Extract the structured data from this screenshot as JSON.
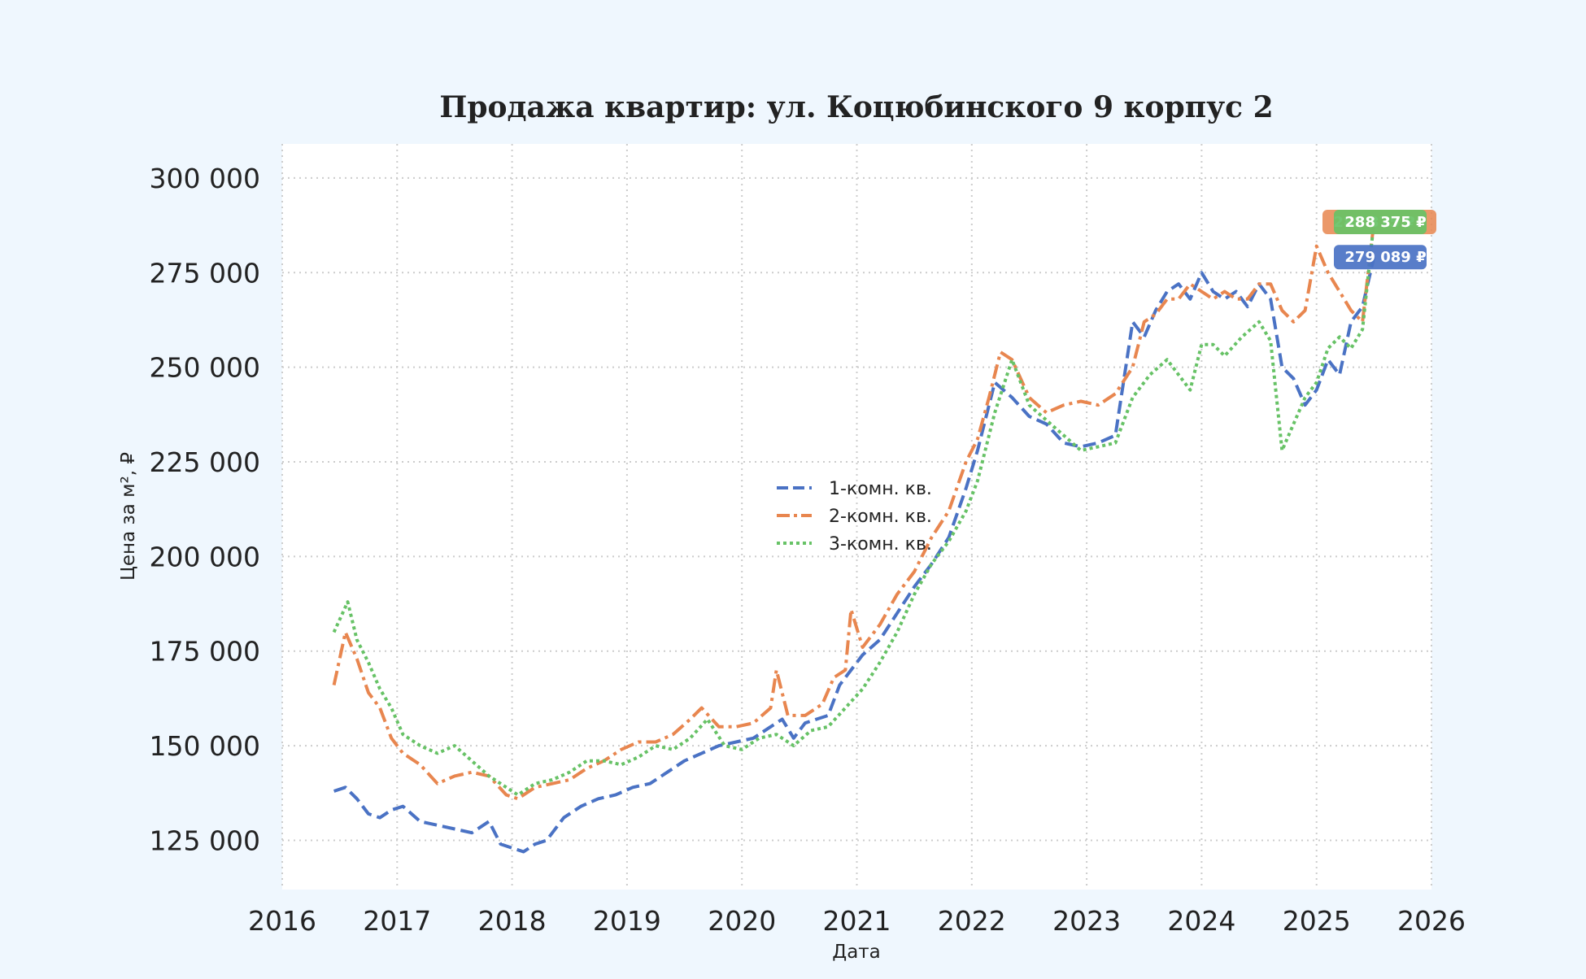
{
  "chart_data": {
    "type": "line",
    "title": "Продажа квартир: ул. Коцюбинского 9 корпус 2",
    "xlabel": "Дата",
    "ylabel": "Цена за м², ₽",
    "xlim": [
      2016,
      2026
    ],
    "ylim": [
      112000,
      309000
    ],
    "x_ticks": [
      "2016",
      "2017",
      "2018",
      "2019",
      "2020",
      "2021",
      "2022",
      "2023",
      "2024",
      "2025",
      "2026"
    ],
    "y_ticks": [
      "125 000",
      "150 000",
      "175 000",
      "200 000",
      "225 000",
      "250 000",
      "275 000",
      "300 000"
    ],
    "grid": true,
    "legend_position": "center",
    "series": [
      {
        "name": "1-комн. кв.",
        "color": "#4a72c4",
        "dash": "dashed",
        "last_value_label": "279 089 ₽",
        "x": [
          2016.45,
          2016.55,
          2016.65,
          2016.75,
          2016.85,
          2016.95,
          2017.05,
          2017.2,
          2017.35,
          2017.5,
          2017.65,
          2017.8,
          2017.9,
          2018.0,
          2018.1,
          2018.2,
          2018.3,
          2018.45,
          2018.6,
          2018.75,
          2018.9,
          2019.05,
          2019.2,
          2019.35,
          2019.5,
          2019.65,
          2019.8,
          2019.95,
          2020.1,
          2020.25,
          2020.35,
          2020.45,
          2020.55,
          2020.65,
          2020.75,
          2020.85,
          2020.95,
          2021.05,
          2021.2,
          2021.35,
          2021.5,
          2021.65,
          2021.8,
          2021.95,
          2022.05,
          2022.2,
          2022.35,
          2022.5,
          2022.65,
          2022.8,
          2022.95,
          2023.1,
          2023.25,
          2023.4,
          2023.5,
          2023.6,
          2023.7,
          2023.8,
          2023.9,
          2024.0,
          2024.1,
          2024.2,
          2024.3,
          2024.4,
          2024.5,
          2024.6,
          2024.7,
          2024.8,
          2024.9,
          2025.0,
          2025.1,
          2025.2,
          2025.3,
          2025.4,
          2025.5
        ],
        "values": [
          138000,
          139000,
          136000,
          132000,
          131000,
          133000,
          134000,
          130000,
          129000,
          128000,
          127000,
          130000,
          124000,
          123000,
          122000,
          124000,
          125000,
          131000,
          134000,
          136000,
          137000,
          139000,
          140000,
          143000,
          146000,
          148000,
          150000,
          151000,
          152000,
          155000,
          157000,
          152000,
          156000,
          157000,
          158000,
          166000,
          170000,
          174000,
          178000,
          185000,
          192000,
          198000,
          205000,
          218000,
          228000,
          246000,
          242000,
          237000,
          235000,
          230000,
          229000,
          230000,
          232000,
          262000,
          258000,
          265000,
          270000,
          272000,
          268000,
          275000,
          270000,
          268000,
          270000,
          266000,
          272000,
          268000,
          250000,
          247000,
          240000,
          244000,
          252000,
          248000,
          262000,
          266000,
          279089
        ]
      },
      {
        "name": "2-комн. кв.",
        "color": "#e8864f",
        "dash": "dashdot",
        "last_value_label": "288 375 ₽",
        "x": [
          2016.45,
          2016.55,
          2016.65,
          2016.75,
          2016.85,
          2016.95,
          2017.05,
          2017.2,
          2017.35,
          2017.5,
          2017.65,
          2017.8,
          2017.95,
          2018.05,
          2018.2,
          2018.35,
          2018.5,
          2018.65,
          2018.8,
          2018.95,
          2019.1,
          2019.25,
          2019.4,
          2019.55,
          2019.65,
          2019.8,
          2019.95,
          2020.1,
          2020.25,
          2020.3,
          2020.4,
          2020.55,
          2020.7,
          2020.8,
          2020.9,
          2020.95,
          2021.05,
          2021.2,
          2021.35,
          2021.5,
          2021.65,
          2021.8,
          2021.95,
          2022.05,
          2022.15,
          2022.25,
          2022.35,
          2022.5,
          2022.65,
          2022.8,
          2022.95,
          2023.1,
          2023.25,
          2023.4,
          2023.5,
          2023.6,
          2023.7,
          2023.8,
          2023.9,
          2024.0,
          2024.1,
          2024.2,
          2024.3,
          2024.4,
          2024.5,
          2024.6,
          2024.7,
          2024.8,
          2024.9,
          2025.0,
          2025.1,
          2025.2,
          2025.3,
          2025.4,
          2025.5
        ],
        "values": [
          166000,
          180000,
          173000,
          164000,
          160000,
          152000,
          148000,
          145000,
          140000,
          142000,
          143000,
          142000,
          137000,
          136000,
          139000,
          140000,
          141000,
          144000,
          146000,
          149000,
          151000,
          151000,
          153000,
          157000,
          160000,
          155000,
          155000,
          156000,
          160000,
          170000,
          158000,
          158000,
          161000,
          168000,
          170000,
          186000,
          176000,
          182000,
          190000,
          196000,
          205000,
          212000,
          225000,
          231000,
          242000,
          254000,
          252000,
          242000,
          238000,
          240000,
          241000,
          240000,
          243000,
          250000,
          262000,
          264000,
          268000,
          268000,
          272000,
          270000,
          268000,
          270000,
          268000,
          268000,
          272000,
          272000,
          265000,
          262000,
          265000,
          282000,
          275000,
          270000,
          265000,
          262000,
          288375
        ]
      },
      {
        "name": "3-комн. кв.",
        "color": "#67c266",
        "dash": "dotted",
        "last_value_label": "288 375 ₽",
        "x": [
          2016.45,
          2016.57,
          2016.65,
          2016.75,
          2016.85,
          2016.95,
          2017.05,
          2017.2,
          2017.35,
          2017.5,
          2017.65,
          2017.8,
          2017.95,
          2018.05,
          2018.2,
          2018.35,
          2018.5,
          2018.65,
          2018.8,
          2018.95,
          2019.1,
          2019.25,
          2019.4,
          2019.55,
          2019.7,
          2019.85,
          2020.0,
          2020.15,
          2020.3,
          2020.45,
          2020.6,
          2020.75,
          2020.9,
          2021.05,
          2021.2,
          2021.35,
          2021.5,
          2021.65,
          2021.8,
          2021.95,
          2022.05,
          2022.2,
          2022.35,
          2022.5,
          2022.65,
          2022.8,
          2022.95,
          2023.1,
          2023.25,
          2023.4,
          2023.55,
          2023.7,
          2023.8,
          2023.9,
          2024.0,
          2024.1,
          2024.2,
          2024.35,
          2024.5,
          2024.6,
          2024.7,
          2024.8,
          2024.9,
          2025.0,
          2025.1,
          2025.2,
          2025.3,
          2025.4,
          2025.5
        ],
        "values": [
          180000,
          188000,
          178000,
          172000,
          165000,
          160000,
          153000,
          150000,
          148000,
          150000,
          146000,
          142000,
          139000,
          137000,
          140000,
          141000,
          143000,
          146000,
          146000,
          145000,
          147000,
          150000,
          149000,
          152000,
          157000,
          150000,
          149000,
          152000,
          153000,
          150000,
          154000,
          155000,
          160000,
          165000,
          172000,
          180000,
          190000,
          198000,
          204000,
          212000,
          220000,
          238000,
          252000,
          240000,
          236000,
          232000,
          228000,
          229000,
          230000,
          242000,
          248000,
          252000,
          248000,
          244000,
          256000,
          256000,
          253000,
          258000,
          262000,
          257000,
          228000,
          235000,
          242000,
          246000,
          255000,
          258000,
          255000,
          260000,
          288375
        ]
      }
    ]
  }
}
